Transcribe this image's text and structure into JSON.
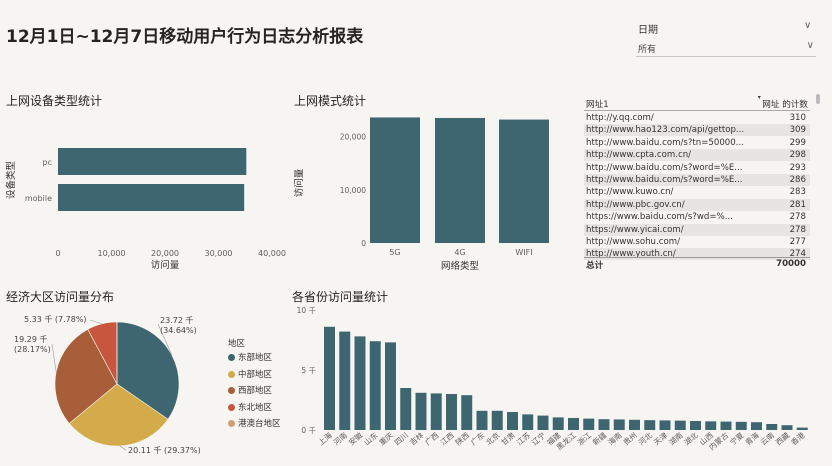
{
  "page": {
    "title": "12月1日~12月7日移动用户行为日志分析报表"
  },
  "slicer": {
    "title": "日期",
    "value": "所有"
  },
  "device_chart": {
    "title": "上网设备类型统计",
    "chart_data": {
      "type": "bar",
      "orientation": "horizontal",
      "categories": [
        "pc",
        "mobile"
      ],
      "values": [
        35200,
        34800
      ],
      "xlim": [
        0,
        40000
      ],
      "xticks": [
        "0",
        "10,000",
        "20,000",
        "30,000",
        "40,000"
      ],
      "xlabel": "访问量",
      "ylabel": "设备类型",
      "color": "#3e6670"
    }
  },
  "network_chart": {
    "title": "上网模式统计",
    "chart_data": {
      "type": "bar",
      "categories": [
        "5G",
        "4G",
        "WIFI"
      ],
      "values": [
        23600,
        23500,
        23200
      ],
      "ylim": [
        0,
        25000
      ],
      "yticks": [
        "0",
        "10,000",
        "20,000"
      ],
      "xlabel": "网络类型",
      "ylabel": "访问量",
      "color": "#3e6670"
    }
  },
  "url_table": {
    "headers": {
      "url": "网址1",
      "count": "网址 的计数"
    },
    "rows": [
      {
        "url": "http://y.qq.com/",
        "count": "310"
      },
      {
        "url": "http://www.hao123.com/api/gettop...",
        "count": "309"
      },
      {
        "url": "http://www.baidu.com/s?tn=50000...",
        "count": "299"
      },
      {
        "url": "http://www.cpta.com.cn/",
        "count": "298"
      },
      {
        "url": "http://www.baidu.com/s?word=%E...",
        "count": "293"
      },
      {
        "url": "http://www.baidu.com/s?word=%E...",
        "count": "286"
      },
      {
        "url": "http://www.kuwo.cn/",
        "count": "283"
      },
      {
        "url": "http://www.pbc.gov.cn/",
        "count": "281"
      },
      {
        "url": "https://www.baidu.com/s?wd=%...",
        "count": "278"
      },
      {
        "url": "https://www.yicai.com/",
        "count": "278"
      },
      {
        "url": "http://www.sohu.com/",
        "count": "277"
      },
      {
        "url": "http://www.youth.cn/",
        "count": "274"
      }
    ],
    "total_label": "总计",
    "total_value": "70000"
  },
  "region_chart": {
    "title": "经济大区访问量分布",
    "legend_title": "地区",
    "chart_data": {
      "type": "pie",
      "slices": [
        {
          "name": "东部地区",
          "value": 23.72,
          "label": "23.72 千",
          "pct": "(34.64%)",
          "color": "#3e6670"
        },
        {
          "name": "中部地区",
          "value": 20.11,
          "label": "20.11 千 (29.37%)",
          "color": "#d4ab4a"
        },
        {
          "name": "西部地区",
          "value": 19.29,
          "label": "19.29 千",
          "pct": "(28.17%)",
          "color": "#a85e38"
        },
        {
          "name": "东北地区",
          "value": 5.33,
          "label": "5.33 千 (7.78%)",
          "color": "#c8553d"
        },
        {
          "name": "港澳台地区",
          "value": 0.02,
          "label": "",
          "color": "#cf9f72"
        }
      ]
    }
  },
  "province_chart": {
    "title": "各省份访问量统计",
    "chart_data": {
      "type": "bar",
      "categories": [
        "上海",
        "河南",
        "安徽",
        "山东",
        "重庆",
        "四川",
        "吉林",
        "广西",
        "江西",
        "陕西",
        "广东",
        "北京",
        "甘肃",
        "江苏",
        "辽宁",
        "福建",
        "黑龙江",
        "浙江",
        "新疆",
        "海南",
        "贵州",
        "河北",
        "天津",
        "湖南",
        "湖北",
        "山西",
        "内蒙古",
        "宁夏",
        "青海",
        "云南",
        "西藏",
        "香港"
      ],
      "values": [
        8.6,
        8.2,
        7.8,
        7.4,
        7.3,
        3.5,
        3.1,
        3.05,
        3.0,
        2.9,
        1.6,
        1.6,
        1.5,
        1.3,
        1.2,
        1.05,
        1.0,
        0.95,
        0.9,
        0.88,
        0.85,
        0.82,
        0.8,
        0.78,
        0.75,
        0.72,
        0.7,
        0.68,
        0.65,
        0.5,
        0.4,
        0.2
      ],
      "ylim": [
        0,
        10
      ],
      "yticks": [
        "0 千",
        "5 千",
        "10 千"
      ],
      "color": "#3e6670"
    }
  }
}
